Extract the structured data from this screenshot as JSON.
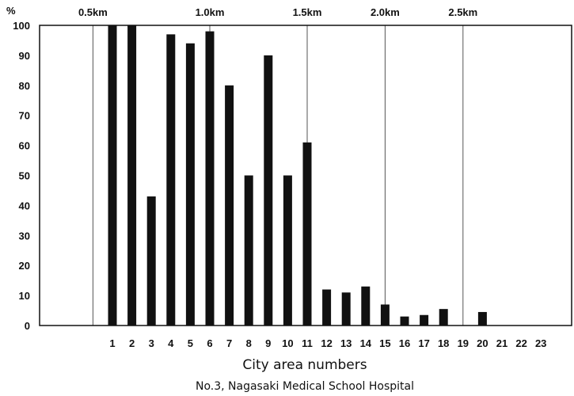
{
  "chart_data": {
    "type": "bar",
    "ylabel": "%",
    "xlabel": "City area numbers",
    "caption": "No.3, Nagasaki Medical School Hospital",
    "ylim": [
      0,
      100
    ],
    "yticks": [
      0,
      10,
      20,
      30,
      40,
      50,
      60,
      70,
      80,
      90,
      100
    ],
    "grid": false,
    "categories": [
      "1",
      "2",
      "3",
      "4",
      "5",
      "6",
      "7",
      "8",
      "9",
      "10",
      "11",
      "12",
      "13",
      "14",
      "15",
      "16",
      "17",
      "18",
      "19",
      "20",
      "21",
      "22",
      "23"
    ],
    "values": [
      100,
      100,
      43,
      97,
      94,
      98,
      80,
      50,
      90,
      50,
      61,
      12,
      11,
      13,
      7,
      3,
      3.5,
      5.5,
      0,
      4.5,
      0,
      0,
      0
    ],
    "bar_color": "#111111",
    "distance_markers": [
      {
        "label": "0.5km",
        "x_before_category": 1
      },
      {
        "label": "1.0km",
        "x_before_category": 6.5
      },
      {
        "label": "1.5km",
        "x_before_category": 11.5
      },
      {
        "label": "2.0km",
        "x_before_category": 15.5
      },
      {
        "label": "2.5km",
        "x_before_category": 19.5
      }
    ]
  }
}
